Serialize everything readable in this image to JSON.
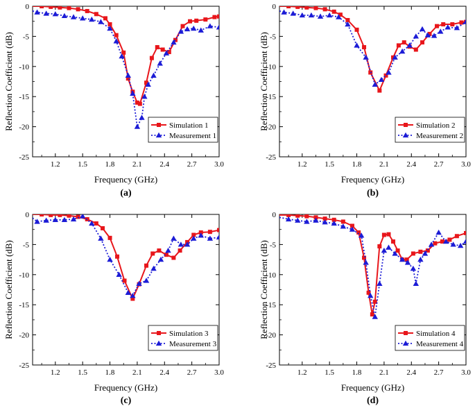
{
  "figure": {
    "panel_labels": [
      "(a)",
      "(b)",
      "(c)",
      "(d)"
    ]
  },
  "colors": {
    "simulation": "#e8161b",
    "measurement": "#1c1cd6"
  },
  "chart_data": [
    {
      "type": "line",
      "panel": "(a)",
      "xlabel": "Frequency (GHz)",
      "ylabel": "Reflection Coefficient (dB)",
      "xlim": [
        0.95,
        3.0
      ],
      "ylim": [
        -25,
        0
      ],
      "xticks": [
        "1.2",
        "1.5",
        "1.8",
        "2.1",
        "2.4",
        "2.7",
        "3.0"
      ],
      "yticks": [
        "0",
        "-5",
        "-10",
        "-15",
        "-20",
        "-25"
      ],
      "legend_position": "bottom-right",
      "series": [
        {
          "name": "Simulation 1",
          "style": "solid-square",
          "x": [
            0.95,
            1.05,
            1.15,
            1.25,
            1.35,
            1.45,
            1.55,
            1.65,
            1.75,
            1.8,
            1.87,
            1.95,
            2.0,
            2.05,
            2.1,
            2.13,
            2.2,
            2.26,
            2.32,
            2.38,
            2.45,
            2.52,
            2.6,
            2.68,
            2.75,
            2.85,
            2.95,
            3.0
          ],
          "y": [
            0,
            0,
            -0.1,
            -0.2,
            -0.3,
            -0.5,
            -0.8,
            -1.3,
            -2.0,
            -3.0,
            -4.8,
            -7.7,
            -12.0,
            -14.2,
            -16.0,
            -16.2,
            -12.7,
            -8.6,
            -6.8,
            -7.2,
            -7.6,
            -5.6,
            -3.3,
            -2.5,
            -2.4,
            -2.2,
            -1.8,
            -1.7
          ]
        },
        {
          "name": "Measurement 1",
          "style": "dotted-triangle",
          "x": [
            0.95,
            1.0,
            1.1,
            1.2,
            1.3,
            1.4,
            1.5,
            1.6,
            1.7,
            1.8,
            1.87,
            1.93,
            2.0,
            2.05,
            2.1,
            2.15,
            2.18,
            2.22,
            2.28,
            2.35,
            2.42,
            2.5,
            2.58,
            2.65,
            2.72,
            2.8,
            2.9,
            3.0
          ],
          "y": [
            -0.8,
            -1.0,
            -1.2,
            -1.3,
            -1.6,
            -1.8,
            -2.0,
            -2.2,
            -2.6,
            -3.7,
            -5.8,
            -8.3,
            -11.5,
            -14.5,
            -20.0,
            -18.5,
            -15.0,
            -13.0,
            -11.5,
            -9.5,
            -7.8,
            -6.0,
            -4.2,
            -3.8,
            -3.7,
            -4.0,
            -3.3,
            -3.5
          ]
        }
      ]
    },
    {
      "type": "line",
      "panel": "(b)",
      "xlabel": "Frequency (GHz)",
      "ylabel": "Reflection Coefficient (dB)",
      "xlim": [
        0.95,
        3.0
      ],
      "ylim": [
        -25,
        0
      ],
      "xticks": [
        "1.2",
        "1.5",
        "1.8",
        "2.1",
        "2.4",
        "2.7",
        "3.0"
      ],
      "yticks": [
        "0",
        "-5",
        "-10",
        "-15",
        "-20",
        "-25"
      ],
      "legend_position": "bottom-right",
      "series": [
        {
          "name": "Simulation 2",
          "style": "solid-square",
          "x": [
            0.95,
            1.05,
            1.15,
            1.25,
            1.35,
            1.45,
            1.55,
            1.62,
            1.7,
            1.8,
            1.88,
            1.95,
            2.05,
            2.12,
            2.2,
            2.26,
            2.32,
            2.38,
            2.45,
            2.52,
            2.6,
            2.68,
            2.75,
            2.85,
            2.95,
            3.0
          ],
          "y": [
            0,
            0,
            -0.1,
            -0.2,
            -0.3,
            -0.5,
            -0.9,
            -1.4,
            -2.3,
            -3.9,
            -6.8,
            -11.0,
            -14.0,
            -11.5,
            -8.5,
            -6.5,
            -6.0,
            -6.7,
            -7.2,
            -6.0,
            -4.6,
            -3.3,
            -3.0,
            -3.0,
            -2.7,
            -2.6
          ]
        },
        {
          "name": "Measurement 2",
          "style": "dotted-triangle",
          "x": [
            0.95,
            1.0,
            1.1,
            1.2,
            1.3,
            1.4,
            1.5,
            1.6,
            1.7,
            1.8,
            1.9,
            2.0,
            2.07,
            2.15,
            2.22,
            2.3,
            2.38,
            2.45,
            2.52,
            2.58,
            2.65,
            2.72,
            2.8,
            2.9,
            3.0
          ],
          "y": [
            -0.8,
            -1.0,
            -1.2,
            -1.5,
            -1.5,
            -1.7,
            -1.5,
            -1.8,
            -3.0,
            -6.5,
            -8.5,
            -13.0,
            -12.2,
            -11.0,
            -8.5,
            -7.5,
            -6.5,
            -5.0,
            -3.8,
            -4.8,
            -4.9,
            -4.2,
            -3.5,
            -3.6,
            -2.6
          ]
        }
      ]
    },
    {
      "type": "line",
      "panel": "(c)",
      "xlabel": "Frequency (GHz)",
      "ylabel": "Reflection Coefficient (dB)",
      "xlim": [
        0.95,
        3.0
      ],
      "ylim": [
        -25,
        0
      ],
      "xticks": [
        "1.2",
        "1.5",
        "1.8",
        "2.1",
        "2.4",
        "2.7",
        "3.0"
      ],
      "yticks": [
        "0",
        "-5",
        "-10",
        "-15",
        "-20",
        "-25"
      ],
      "legend_position": "bottom-right",
      "series": [
        {
          "name": "Simulation 3",
          "style": "solid-square",
          "x": [
            0.95,
            1.05,
            1.15,
            1.25,
            1.35,
            1.45,
            1.55,
            1.65,
            1.72,
            1.8,
            1.88,
            1.96,
            2.05,
            2.12,
            2.2,
            2.27,
            2.34,
            2.42,
            2.5,
            2.57,
            2.65,
            2.72,
            2.8,
            2.9,
            3.0
          ],
          "y": [
            0,
            0,
            -0.1,
            -0.1,
            -0.2,
            -0.4,
            -0.8,
            -1.5,
            -2.3,
            -3.9,
            -7.0,
            -11.0,
            -14.0,
            -11.6,
            -8.5,
            -6.5,
            -6.0,
            -6.7,
            -7.2,
            -6.0,
            -4.6,
            -3.4,
            -3.0,
            -2.9,
            -2.6
          ]
        },
        {
          "name": "Measurement 3",
          "style": "dotted-triangle",
          "x": [
            0.95,
            1.0,
            1.1,
            1.2,
            1.3,
            1.4,
            1.5,
            1.6,
            1.7,
            1.8,
            1.9,
            2.0,
            2.05,
            2.12,
            2.2,
            2.28,
            2.36,
            2.44,
            2.5,
            2.58,
            2.65,
            2.72,
            2.8,
            2.9,
            3.0
          ],
          "y": [
            -0.6,
            -1.2,
            -1.0,
            -0.9,
            -0.9,
            -0.8,
            -0.3,
            -1.5,
            -4.0,
            -7.5,
            -10.0,
            -13.0,
            -13.5,
            -11.5,
            -11.0,
            -9.0,
            -7.5,
            -6.0,
            -4.0,
            -5.0,
            -5.0,
            -4.0,
            -3.5,
            -4.0,
            -3.8
          ]
        }
      ]
    },
    {
      "type": "line",
      "panel": "(d)",
      "xlabel": "Frequency (GHz)",
      "ylabel": "Reflection Coefficient (dB)",
      "xlim": [
        0.95,
        3.0
      ],
      "ylim": [
        -25,
        0
      ],
      "xticks": [
        "1.2",
        "1.5",
        "1.8",
        "2.1",
        "2.4",
        "2.7",
        "3.0"
      ],
      "yticks": [
        "0",
        "-5",
        "-10",
        "-15",
        "-20",
        "-25"
      ],
      "legend_position": "bottom-right",
      "series": [
        {
          "name": "Simulation 4",
          "style": "solid-square",
          "x": [
            0.95,
            1.05,
            1.15,
            1.25,
            1.35,
            1.45,
            1.55,
            1.65,
            1.75,
            1.82,
            1.88,
            1.93,
            1.97,
            2.0,
            2.05,
            2.1,
            2.15,
            2.2,
            2.25,
            2.3,
            2.35,
            2.42,
            2.5,
            2.58,
            2.66,
            2.74,
            2.82,
            2.9,
            3.0
          ],
          "y": [
            -0.1,
            -0.1,
            -0.2,
            -0.3,
            -0.5,
            -0.7,
            -0.9,
            -1.2,
            -1.9,
            -3.0,
            -7.2,
            -13.0,
            -16.6,
            -14.5,
            -5.3,
            -3.4,
            -3.3,
            -4.5,
            -6.0,
            -7.5,
            -7.5,
            -6.5,
            -6.2,
            -6.0,
            -4.8,
            -4.5,
            -4.2,
            -3.6,
            -3.1
          ]
        },
        {
          "name": "Measurement 4",
          "style": "dotted-triangle",
          "x": [
            0.95,
            1.05,
            1.15,
            1.25,
            1.35,
            1.45,
            1.55,
            1.65,
            1.75,
            1.85,
            1.9,
            1.95,
            2.0,
            2.05,
            2.1,
            2.15,
            2.22,
            2.3,
            2.36,
            2.42,
            2.45,
            2.5,
            2.55,
            2.62,
            2.7,
            2.78,
            2.86,
            2.94,
            3.0
          ],
          "y": [
            -0.5,
            -0.8,
            -1.0,
            -1.2,
            -1.0,
            -1.3,
            -1.5,
            -2.0,
            -2.5,
            -3.5,
            -8.0,
            -13.5,
            -17.0,
            -11.5,
            -6.0,
            -5.5,
            -6.5,
            -7.5,
            -8.0,
            -9.0,
            -11.5,
            -7.5,
            -6.5,
            -5.0,
            -3.0,
            -4.5,
            -5.0,
            -5.2,
            -4.5
          ]
        }
      ]
    }
  ]
}
